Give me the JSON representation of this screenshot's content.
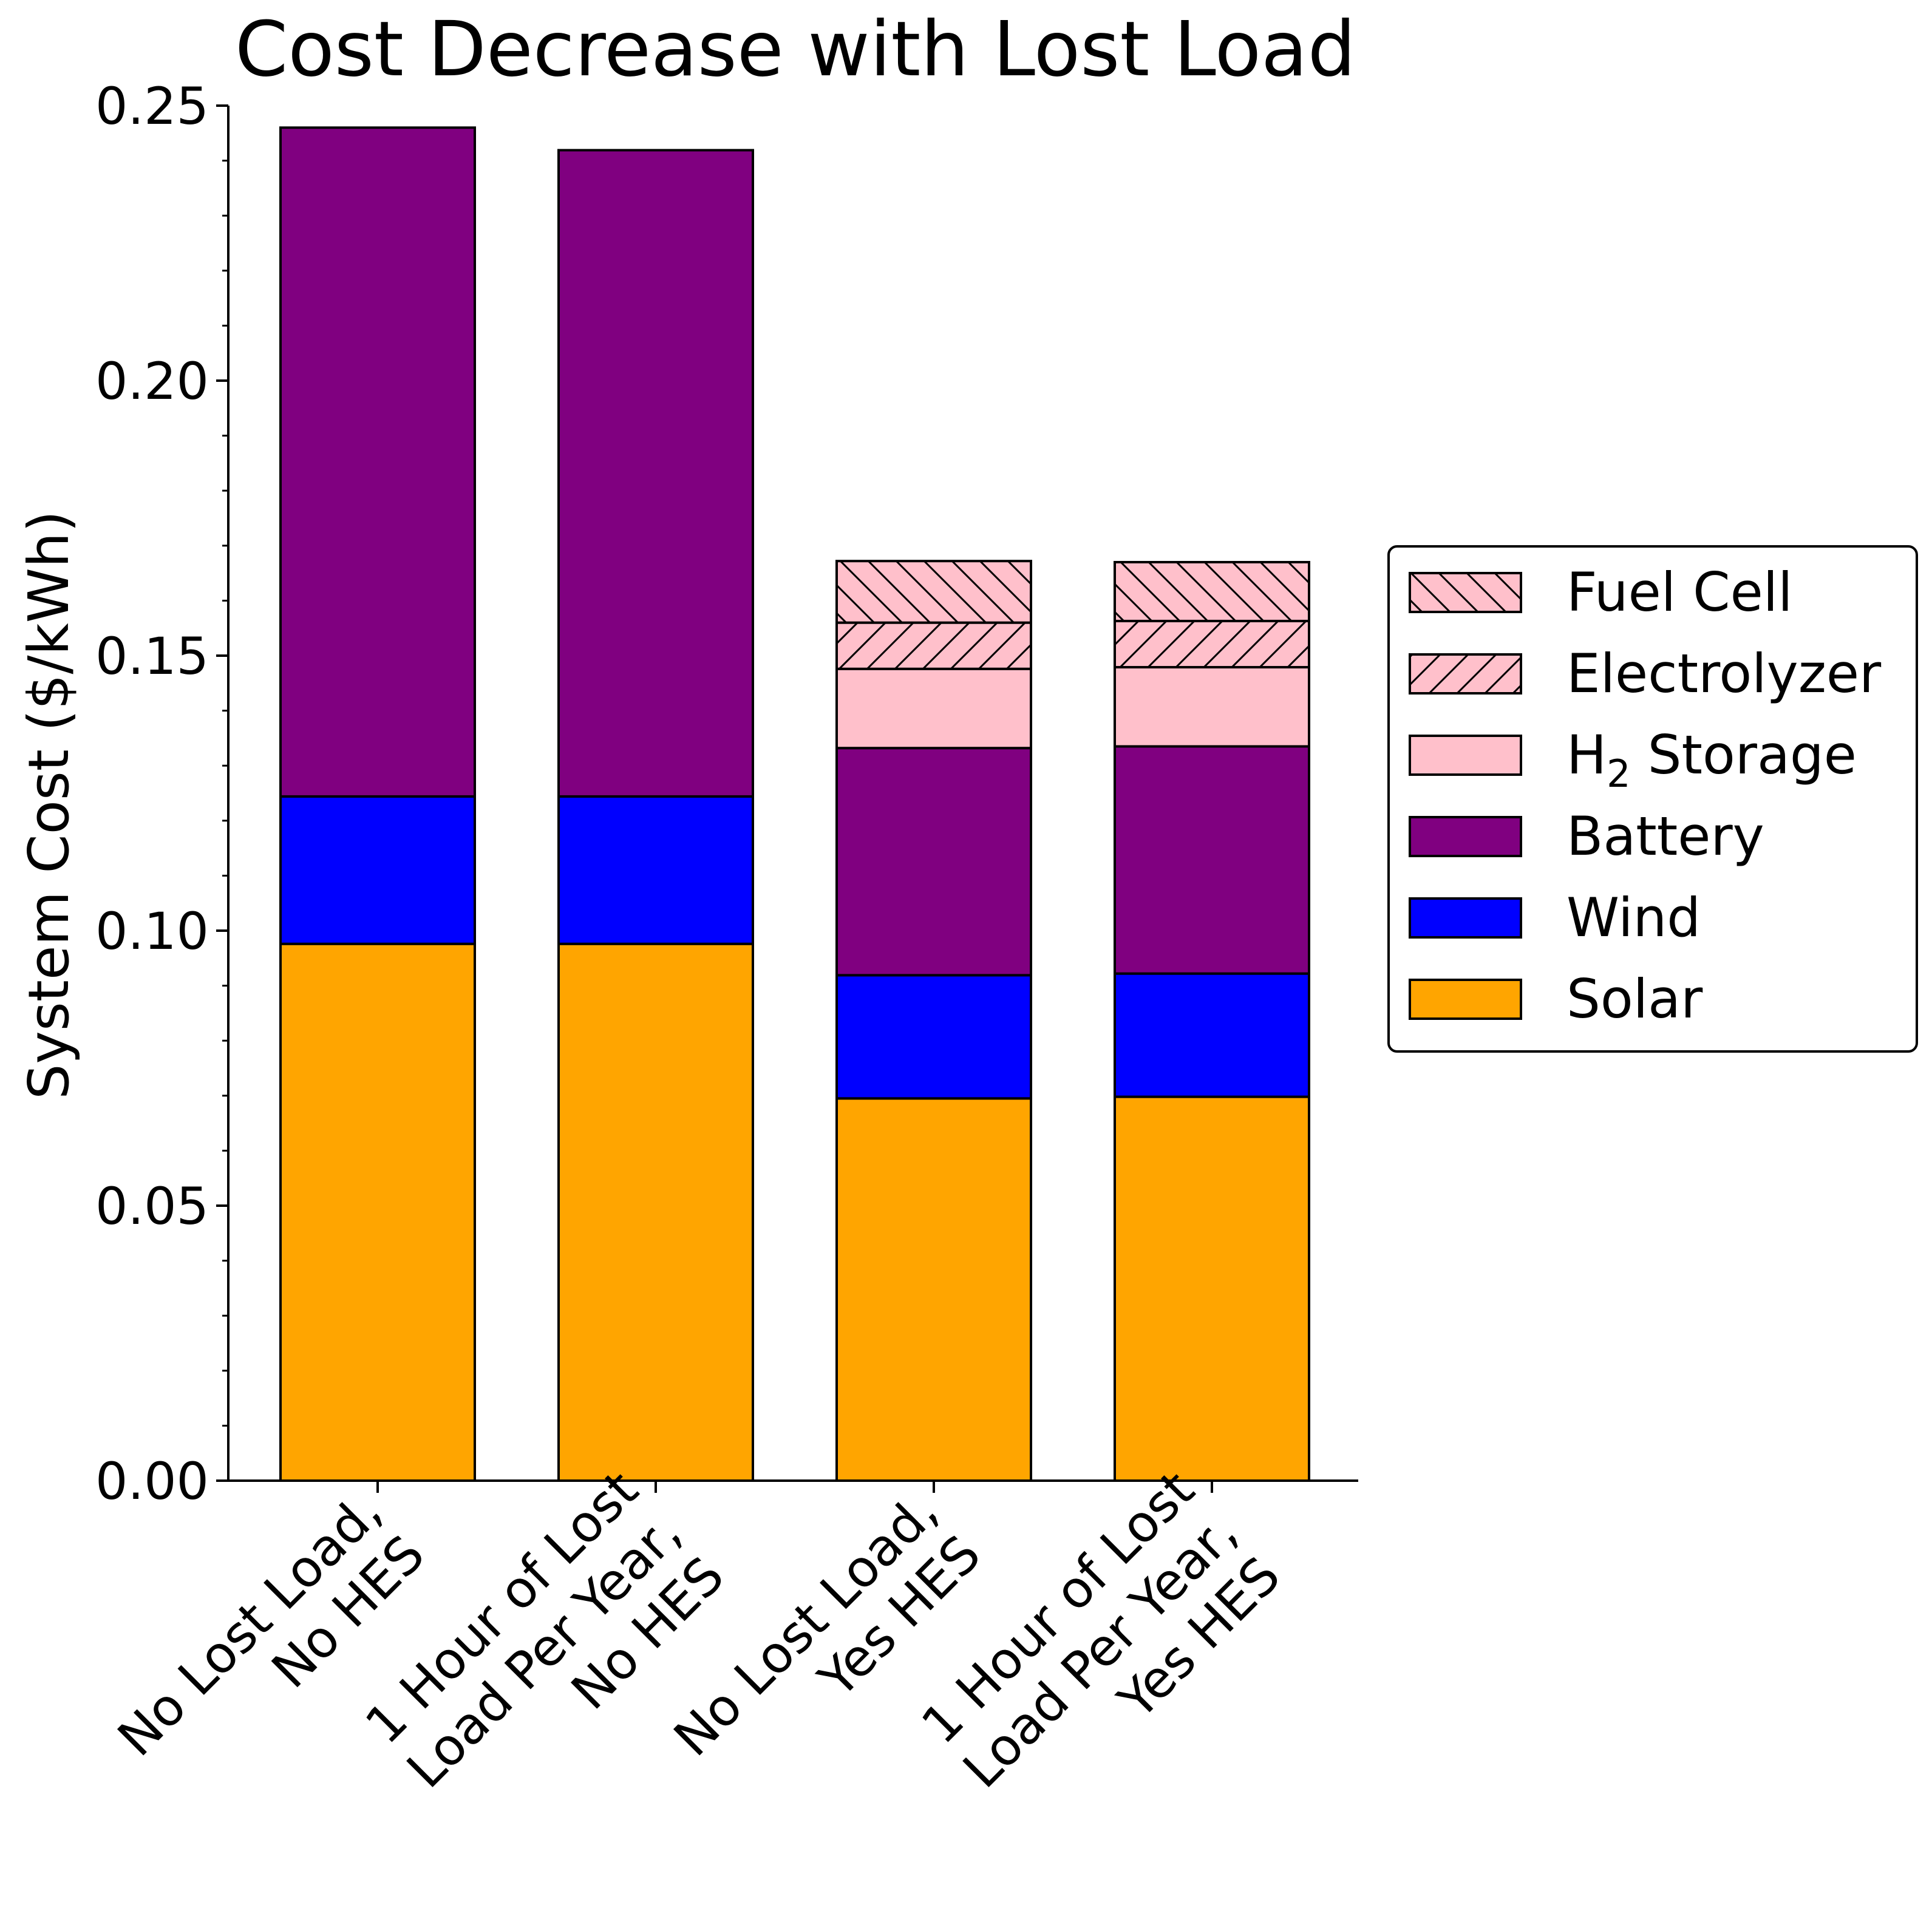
{
  "chart_data": {
    "type": "bar",
    "stacked": true,
    "title": "Cost Decrease with Lost Load",
    "xlabel": "",
    "ylabel": "System Cost ($/kWh)",
    "ylim": [
      0,
      0.25
    ],
    "yticks": [
      "0.00",
      "0.05",
      "0.10",
      "0.15",
      "0.20",
      "0.25"
    ],
    "grid": false,
    "legend_position": "right",
    "categories": [
      [
        "No Lost Load,",
        "No HES"
      ],
      [
        "1 Hour of Lost",
        "Load Per Year,",
        "No HES"
      ],
      [
        "No Lost Load,",
        "Yes HES"
      ],
      [
        "1 Hour of Lost",
        "Load Per Year,",
        "Yes HES"
      ]
    ],
    "series": [
      {
        "name": "Solar",
        "color": "#FFA500",
        "hatch": "none",
        "values": [
          0.0976,
          0.0976,
          0.0695,
          0.0698
        ]
      },
      {
        "name": "Wind",
        "color": "#0000FF",
        "hatch": "none",
        "values": [
          0.0268,
          0.0268,
          0.0224,
          0.0224
        ]
      },
      {
        "name": "Battery",
        "color": "#800080",
        "hatch": "none",
        "values": [
          0.1216,
          0.1175,
          0.0413,
          0.0413
        ]
      },
      {
        "name": "H2 Storage",
        "color": "#FFC0CB",
        "hatch": "none",
        "values": [
          0,
          0,
          0.0144,
          0.0144
        ]
      },
      {
        "name": "Electrolyzer",
        "color": "#FFC0CB",
        "hatch": "forward",
        "values": [
          0,
          0,
          0.0084,
          0.0084
        ]
      },
      {
        "name": "Fuel Cell",
        "color": "#FFC0CB",
        "hatch": "backward",
        "values": [
          0,
          0,
          0.0112,
          0.0107
        ]
      }
    ],
    "legend_order": [
      "Fuel Cell",
      "Electrolyzer",
      "H2 Storage",
      "Battery",
      "Wind",
      "Solar"
    ],
    "legend_labels": {
      "Fuel Cell": [
        "Fuel Cell"
      ],
      "Electrolyzer": [
        "Electrolyzer"
      ],
      "H2 Storage": [
        "H",
        "2",
        " Storage"
      ],
      "Battery": [
        "Battery"
      ],
      "Wind": [
        "Wind"
      ],
      "Solar": [
        "Solar"
      ]
    }
  }
}
